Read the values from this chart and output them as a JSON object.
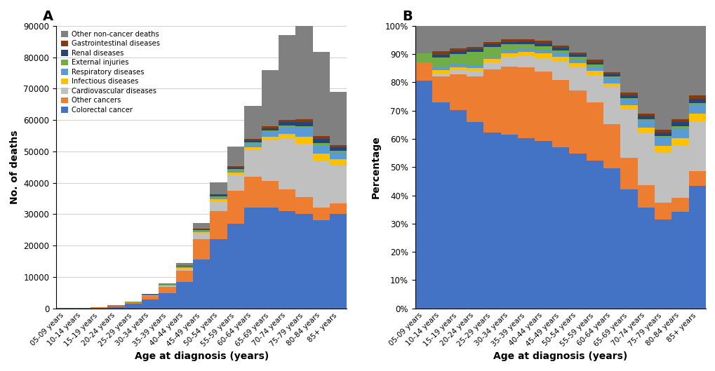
{
  "age_groups": [
    "05-09 years",
    "10-14 years",
    "15-19 years",
    "20-24 years",
    "25-29 years",
    "30-34 years",
    "35-39 years",
    "40-44 years",
    "45-49 years",
    "50-54 years",
    "55-59 years",
    "60-64 years",
    "65-69 years",
    "70-74 years",
    "75-79 years",
    "80-84 years",
    "85+ years"
  ],
  "categories": [
    "Colorectal cancer",
    "Other cancers",
    "Cardiovascular diseases",
    "Infectious diseases",
    "Respiratory diseases",
    "External injuries",
    "Renal diseases",
    "Gastrointestinal diseases",
    "Other non-cancer deaths"
  ],
  "colors": {
    "Colorectal cancer": "#4472C4",
    "Other cancers": "#ED7D31",
    "Cardiovascular diseases": "#C0C0C0",
    "Infectious diseases": "#FFC000",
    "Respiratory diseases": "#5B9BD5",
    "External injuries": "#70AD47",
    "Renal diseases": "#264478",
    "Gastrointestinal diseases": "#843C0C",
    "Other non-cancer deaths": "#808080"
  },
  "raw": {
    "Colorectal cancer": [
      25,
      65,
      220,
      620,
      1400,
      2800,
      4800,
      8500,
      15500,
      22000,
      27000,
      32000,
      32000,
      31000,
      30000,
      28000,
      30000
    ],
    "Other cancers": [
      2,
      8,
      40,
      150,
      500,
      1100,
      2000,
      3500,
      6500,
      9000,
      10500,
      10000,
      8500,
      7000,
      5500,
      4000,
      3500
    ],
    "Cardiovascular diseases": [
      0,
      1,
      5,
      20,
      60,
      150,
      300,
      700,
      1800,
      3200,
      5000,
      8500,
      13000,
      16000,
      17000,
      15000,
      12000
    ],
    "Infectious diseases": [
      0,
      1,
      3,
      10,
      25,
      60,
      120,
      250,
      450,
      600,
      750,
      900,
      1100,
      1600,
      2200,
      2300,
      2000
    ],
    "Respiratory diseases": [
      0,
      1,
      3,
      8,
      18,
      45,
      90,
      180,
      380,
      580,
      800,
      1100,
      1600,
      2300,
      2800,
      2800,
      2200
    ],
    "External injuries": [
      1,
      3,
      12,
      45,
      80,
      100,
      140,
      180,
      270,
      320,
      370,
      380,
      380,
      450,
      550,
      550,
      450
    ],
    "Renal diseases": [
      0,
      1,
      3,
      8,
      18,
      38,
      70,
      140,
      240,
      340,
      480,
      600,
      800,
      1000,
      1300,
      1300,
      1100
    ],
    "Gastrointestinal diseases": [
      0,
      1,
      3,
      8,
      18,
      38,
      70,
      130,
      200,
      290,
      400,
      500,
      600,
      700,
      850,
      850,
      750
    ],
    "Other non-cancer deaths": [
      3,
      8,
      25,
      70,
      130,
      220,
      370,
      750,
      1900,
      3800,
      6200,
      10500,
      18000,
      27000,
      35000,
      27000,
      17000
    ]
  },
  "ylim_A": [
    0,
    90000
  ],
  "yticks_A": [
    0,
    10000,
    20000,
    30000,
    40000,
    50000,
    60000,
    70000,
    80000,
    90000
  ],
  "ylabel_A": "No. of deaths",
  "xlabel": "Age at diagnosis (years)",
  "ylabel_B": "Percentage",
  "legend_order": [
    "Other non-cancer deaths",
    "Gastrointestinal diseases",
    "Renal diseases",
    "External injuries",
    "Respiratory diseases",
    "Infectious diseases",
    "Cardiovascular diseases",
    "Other cancers",
    "Colorectal cancer"
  ]
}
